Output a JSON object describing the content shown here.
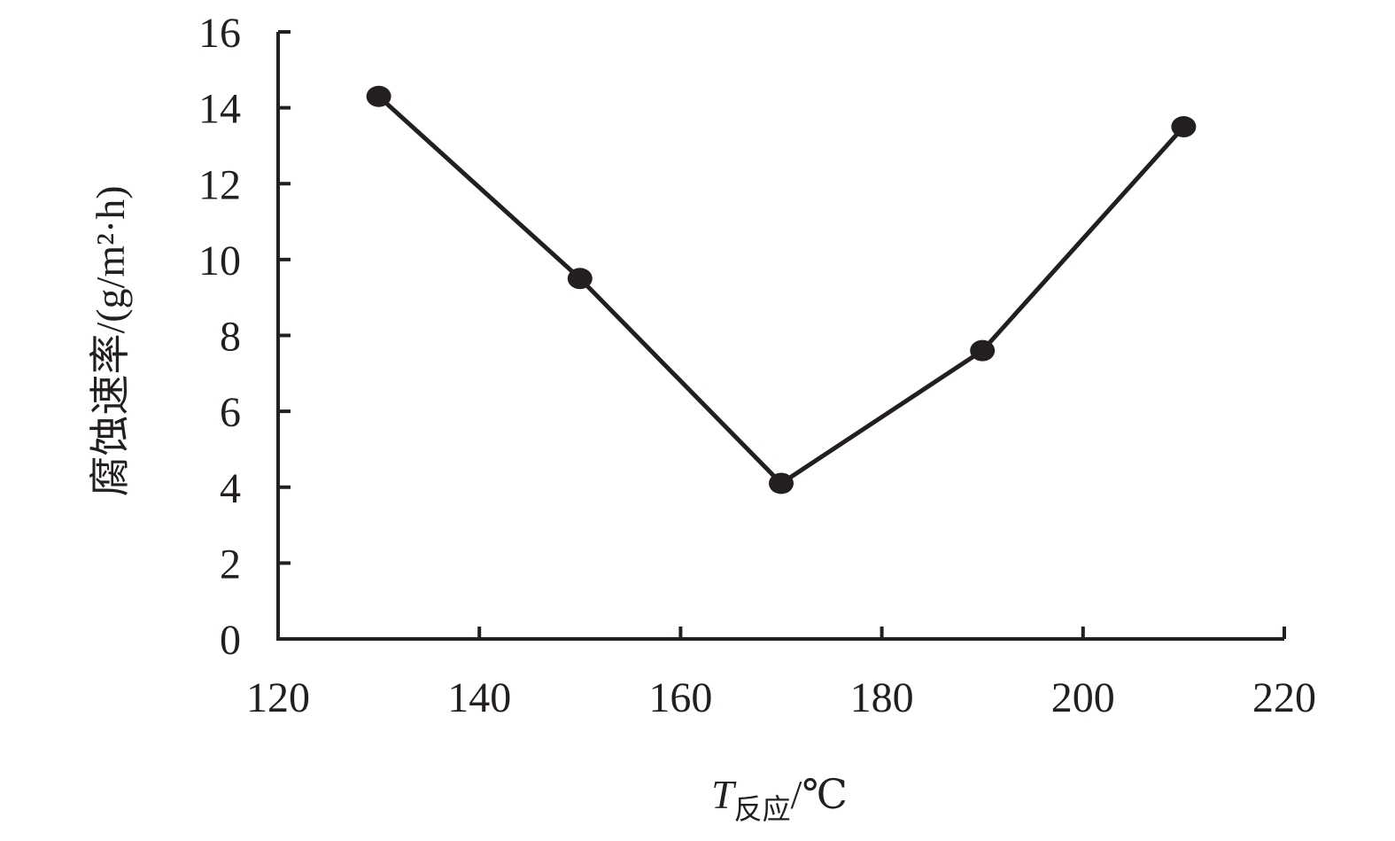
{
  "chart_data": {
    "type": "line",
    "title": "",
    "xlabel": {
      "main": "T",
      "sub": "反应",
      "unit": "/℃"
    },
    "ylabel": "腐蚀速率/(g/m²·h)",
    "xlim": [
      120,
      220
    ],
    "ylim": [
      0,
      16
    ],
    "xticks": [
      120,
      140,
      160,
      180,
      200,
      220
    ],
    "yticks": [
      0,
      2,
      4,
      6,
      8,
      10,
      12,
      14,
      16
    ],
    "grid": false,
    "series": [
      {
        "x": [
          130,
          150,
          170,
          190,
          210
        ],
        "y": [
          14.3,
          9.5,
          4.1,
          7.6,
          13.5
        ]
      }
    ]
  }
}
